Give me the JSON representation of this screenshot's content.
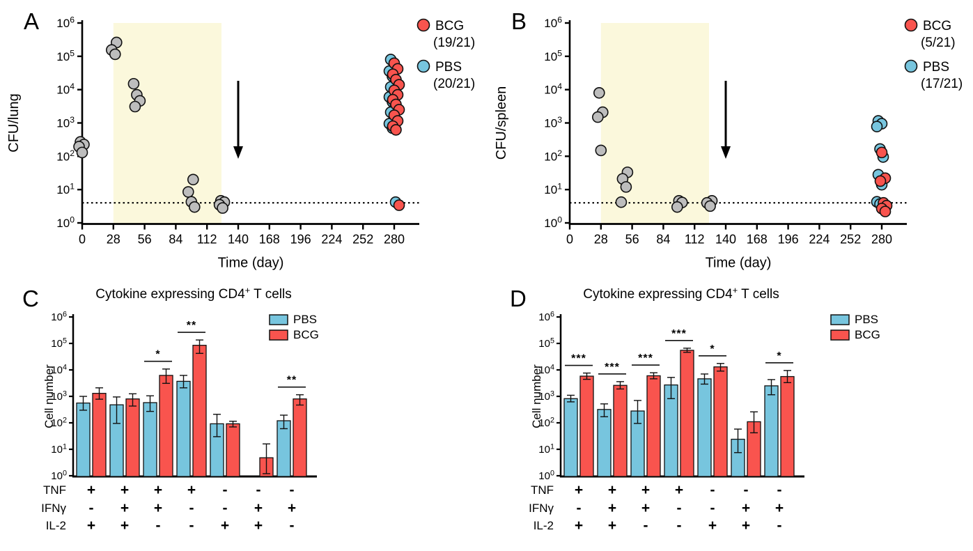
{
  "figure": {
    "background": "#ffffff",
    "colors": {
      "bcg": "#F9544E",
      "pbs": "#77C5DE",
      "naive": "#BDBDBD",
      "band": "#FBF8DC",
      "axis": "#000000"
    }
  },
  "chart_data": [
    {
      "id": "A",
      "panel_label": "A",
      "type": "scatter",
      "ylabel": "CFU/lung",
      "xlabel": "Time (day)",
      "y_scale": "log",
      "ylim_exp": [
        0,
        6
      ],
      "x_ticks": [
        0,
        28,
        56,
        84,
        112,
        140,
        168,
        196,
        224,
        252,
        280
      ],
      "x_max_day": 302,
      "detection_limit": 4,
      "shaded_region": {
        "start_day": 28,
        "end_day": 125,
        "color": "#FBF8DC"
      },
      "arrow_day": 140,
      "legend": [
        {
          "label": "BCG",
          "count": "(19/21)",
          "color": "#F9544E"
        },
        {
          "label": "PBS",
          "count": "(20/21)",
          "color": "#77C5DE"
        }
      ],
      "series": [
        {
          "name": "naive",
          "color": "#BDBDBD",
          "dx": 0,
          "points": [
            [
              0,
              270
            ],
            [
              0,
              225
            ],
            [
              0,
              195
            ],
            [
              0,
              130
            ],
            [
              28,
              260000
            ],
            [
              28,
              155000
            ],
            [
              28,
              115000
            ],
            [
              49,
              15000
            ],
            [
              49,
              7000
            ],
            [
              49,
              4600
            ],
            [
              49,
              3100
            ],
            [
              98,
              20
            ],
            [
              98,
              8.5
            ],
            [
              98,
              4.3
            ],
            [
              98,
              3.0
            ],
            [
              126,
              4.6
            ],
            [
              126,
              4.2
            ],
            [
              126,
              3.5
            ],
            [
              126,
              2.8
            ]
          ]
        },
        {
          "name": "PBS",
          "color": "#77C5DE",
          "dx": -2.5,
          "points": [
            [
              280,
              80000
            ],
            [
              280,
              52000
            ],
            [
              280,
              36000
            ],
            [
              280,
              25000
            ],
            [
              280,
              17000
            ],
            [
              280,
              12000
            ],
            [
              280,
              8500
            ],
            [
              280,
              6000
            ],
            [
              280,
              4300
            ],
            [
              280,
              3000
            ],
            [
              280,
              2100
            ],
            [
              280,
              1400
            ],
            [
              280,
              950
            ],
            [
              280,
              700
            ],
            [
              280,
              4.2
            ]
          ]
        },
        {
          "name": "BCG",
          "color": "#F9544E",
          "dx": 2.5,
          "points": [
            [
              280,
              62000
            ],
            [
              280,
              42000
            ],
            [
              280,
              29000
            ],
            [
              280,
              20000
            ],
            [
              280,
              14000
            ],
            [
              280,
              9500
            ],
            [
              280,
              7000
            ],
            [
              280,
              5000
            ],
            [
              280,
              3600
            ],
            [
              280,
              2500
            ],
            [
              280,
              1700
            ],
            [
              280,
              1150
            ],
            [
              280,
              800
            ],
            [
              280,
              620
            ],
            [
              280,
              3.4
            ]
          ]
        }
      ]
    },
    {
      "id": "B",
      "panel_label": "B",
      "type": "scatter",
      "ylabel": "CFU/spleen",
      "xlabel": "Time (day)",
      "y_scale": "log",
      "ylim_exp": [
        0,
        6
      ],
      "x_ticks": [
        0,
        28,
        56,
        84,
        112,
        140,
        168,
        196,
        224,
        252,
        280
      ],
      "x_max_day": 302,
      "detection_limit": 4,
      "shaded_region": {
        "start_day": 28,
        "end_day": 125,
        "color": "#FBF8DC"
      },
      "arrow_day": 140,
      "legend": [
        {
          "label": "BCG",
          "count": "(5/21)",
          "color": "#F9544E"
        },
        {
          "label": "PBS",
          "count": "(17/21)",
          "color": "#77C5DE"
        }
      ],
      "series": [
        {
          "name": "naive",
          "color": "#BDBDBD",
          "dx": 0,
          "points": [
            [
              28,
              8000
            ],
            [
              28,
              2100
            ],
            [
              28,
              1500
            ],
            [
              28,
              150
            ],
            [
              49,
              33
            ],
            [
              49,
              21
            ],
            [
              49,
              12
            ],
            [
              49,
              4.2
            ],
            [
              98,
              4.6
            ],
            [
              98,
              4.1
            ],
            [
              98,
              3.0
            ],
            [
              126,
              4.6
            ],
            [
              126,
              4.0
            ],
            [
              126,
              3.2
            ]
          ]
        },
        {
          "name": "PBS",
          "color": "#77C5DE",
          "dx": -2.5,
          "points": [
            [
              280,
              1150
            ],
            [
              280,
              950
            ],
            [
              280,
              780
            ],
            [
              280,
              165
            ],
            [
              280,
              95
            ],
            [
              280,
              28
            ],
            [
              280,
              14
            ],
            [
              280,
              4.3
            ],
            [
              280,
              3.7
            ]
          ]
        },
        {
          "name": "BCG",
          "color": "#F9544E",
          "dx": 2.5,
          "points": [
            [
              280,
              130
            ],
            [
              280,
              22
            ],
            [
              280,
              18
            ],
            [
              280,
              4.0
            ],
            [
              280,
              3.3
            ],
            [
              280,
              2.7
            ],
            [
              280,
              2.2
            ]
          ]
        }
      ]
    },
    {
      "id": "C",
      "panel_label": "C",
      "type": "bar",
      "title_parts": {
        "pre": "Cytokine expressing CD4",
        "sup": "+",
        "post": " T cells"
      },
      "ylabel": "Cell number",
      "y_scale": "log",
      "ylim_exp": [
        0,
        6
      ],
      "legend": [
        {
          "label": "PBS",
          "color": "#77C5DE"
        },
        {
          "label": "BCG",
          "color": "#F9544E"
        }
      ],
      "series": [
        {
          "name": "PBS",
          "color": "#77C5DE",
          "values": [
            560,
            480,
            580,
            3700,
            92,
            null,
            120
          ],
          "err_hi": [
            1000,
            950,
            1050,
            6200,
            210,
            null,
            195
          ],
          "err_lo": [
            300,
            95,
            270,
            2100,
            30,
            null,
            60
          ]
        },
        {
          "name": "BCG",
          "color": "#F9544E",
          "values": [
            1300,
            800,
            6200,
            85000,
            92,
            4.8,
            800
          ],
          "err_hi": [
            2100,
            1250,
            10800,
            135000,
            115,
            16,
            1150
          ],
          "err_lo": [
            780,
            430,
            3100,
            42000,
            70,
            1.2,
            470
          ]
        }
      ],
      "significance": [
        "",
        "",
        "*",
        "**",
        "",
        "",
        "**"
      ],
      "matrix": {
        "rows": [
          "TNF",
          "IFNγ",
          "IL-2"
        ],
        "signs": [
          [
            "+",
            "+",
            "+",
            "+",
            "-",
            "-",
            "-"
          ],
          [
            "-",
            "+",
            "+",
            "-",
            "-",
            "+",
            "+"
          ],
          [
            "+",
            "+",
            "-",
            "-",
            "+",
            "+",
            "-"
          ]
        ]
      }
    },
    {
      "id": "D",
      "panel_label": "D",
      "type": "bar",
      "title_parts": {
        "pre": "Cytokine expressing CD4",
        "sup": "+",
        "post": " T cells"
      },
      "ylabel": "Cell number",
      "y_scale": "log",
      "ylim_exp": [
        0,
        6
      ],
      "legend": [
        {
          "label": "PBS",
          "color": "#77C5DE"
        },
        {
          "label": "BCG",
          "color": "#F9544E"
        }
      ],
      "series": [
        {
          "name": "PBS",
          "color": "#77C5DE",
          "values": [
            820,
            320,
            280,
            2700,
            4600,
            24,
            2500
          ],
          "err_hi": [
            1100,
            520,
            700,
            5200,
            7000,
            58,
            4300
          ],
          "err_lo": [
            620,
            170,
            95,
            820,
            2900,
            7.5,
            1150
          ]
        },
        {
          "name": "BCG",
          "color": "#F9544E",
          "values": [
            5800,
            2600,
            6000,
            55000,
            13000,
            110,
            5600
          ],
          "err_hi": [
            7600,
            3600,
            7800,
            66000,
            17500,
            260,
            9500
          ],
          "err_lo": [
            4400,
            1900,
            4600,
            46000,
            9000,
            42,
            3300
          ]
        }
      ],
      "significance": [
        "***",
        "***",
        "***",
        "***",
        "*",
        "",
        "*"
      ],
      "matrix": {
        "rows": [
          "TNF",
          "IFNγ",
          "IL-2"
        ],
        "signs": [
          [
            "+",
            "+",
            "+",
            "+",
            "-",
            "-",
            "-"
          ],
          [
            "-",
            "+",
            "+",
            "-",
            "-",
            "+",
            "+"
          ],
          [
            "+",
            "+",
            "-",
            "-",
            "+",
            "+",
            "-"
          ]
        ]
      }
    }
  ]
}
